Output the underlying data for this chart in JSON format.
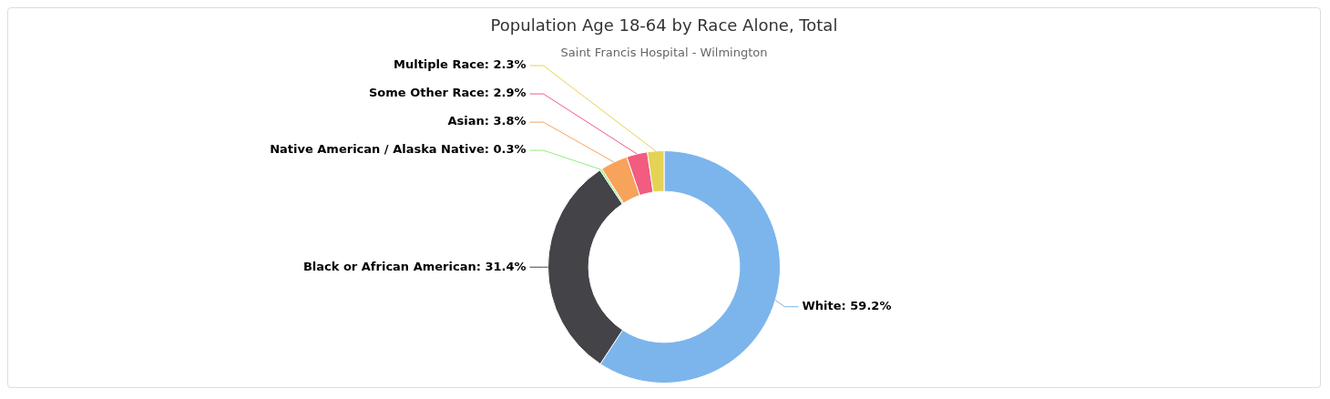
{
  "chart_data": {
    "type": "donut",
    "title": "Population Age 18-64 by Race Alone, Total",
    "subtitle": "Saint Francis Hospital - Wilmington",
    "categories": [
      "White",
      "Black or African American",
      "Native American / Alaska Native",
      "Asian",
      "Some Other Race",
      "Multiple Race"
    ],
    "values": [
      59.2,
      31.4,
      0.3,
      3.8,
      2.9,
      2.3
    ],
    "value_labels": [
      "59.2%",
      "31.4%",
      "0.3%",
      "3.8%",
      "2.9%",
      "2.3%"
    ],
    "colors": [
      "#7cb5ec",
      "#434348",
      "#90ed7d",
      "#f7a35c",
      "#f15c80",
      "#e4d354"
    ],
    "legend": false
  }
}
